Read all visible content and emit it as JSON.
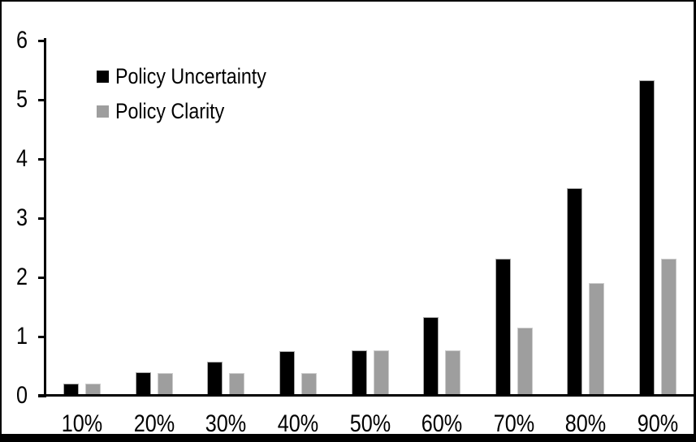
{
  "frame": {
    "background": "#ffffff",
    "border_color": "#000000"
  },
  "chart_data": {
    "type": "bar",
    "title": "",
    "xlabel": "",
    "ylabel": "",
    "categories": [
      "10%",
      "20%",
      "30%",
      "40%",
      "50%",
      "60%",
      "70%",
      "80%",
      "90%"
    ],
    "series": [
      {
        "name": "Policy Uncertainty",
        "color": "#000000",
        "edge_color": "#a8a8a8",
        "values": [
          0.2,
          0.4,
          0.57,
          0.76,
          0.77,
          1.33,
          2.31,
          3.5,
          5.33
        ]
      },
      {
        "name": "Policy Clarity",
        "color": "#9e9e9e",
        "edge_color": "#cccccc",
        "values": [
          0.2,
          0.38,
          0.38,
          0.38,
          0.77,
          0.77,
          1.15,
          1.9,
          2.31
        ]
      }
    ],
    "ylim": [
      0,
      6
    ],
    "yticks": [
      "0",
      "1",
      "2",
      "3",
      "4",
      "5",
      "6"
    ],
    "grid": false,
    "legend_position": "upper-left-inside",
    "axis_color": "#000000"
  }
}
